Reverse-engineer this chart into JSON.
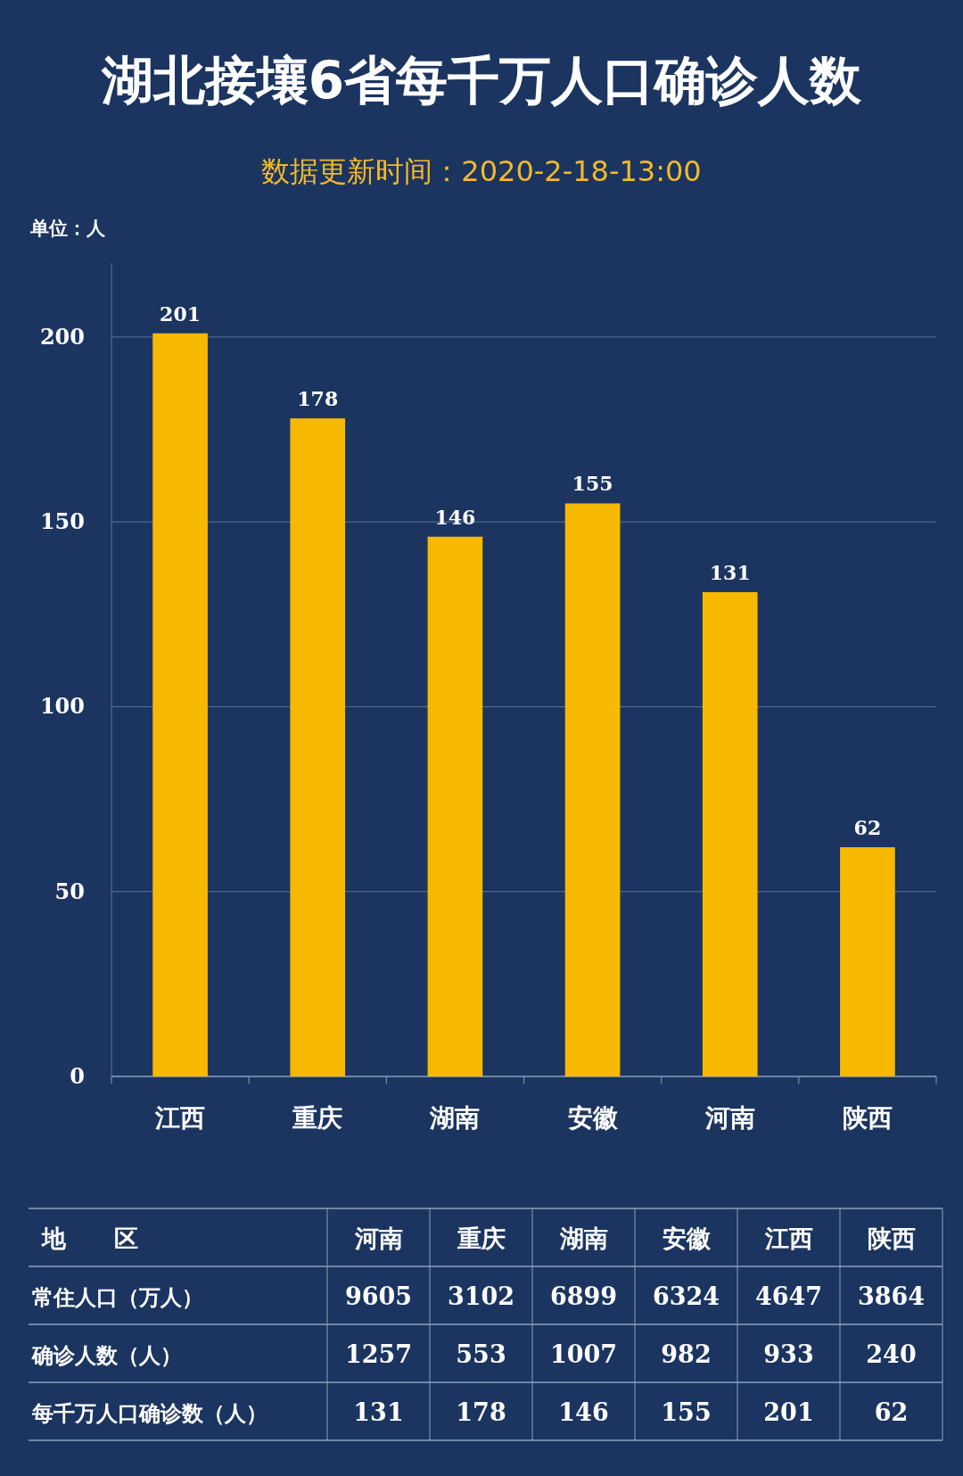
{
  "chart_data": [
    {
      "type": "bar",
      "title": "湖北接壤6省每千万人口确诊人数",
      "subtitle": "数据更新时间：2020-2-18-13:00",
      "ylabel": "单位：人",
      "categories": [
        "江西",
        "重庆",
        "湖南",
        "安徽",
        "河南",
        "陕西"
      ],
      "values": [
        201,
        178,
        146,
        155,
        131,
        62
      ],
      "color": "#f7b900",
      "ylim": [
        0,
        220
      ],
      "yticks": [
        0,
        50,
        100,
        150,
        200
      ],
      "grid": "y",
      "data_labels": true
    },
    {
      "type": "heatmap",
      "ylabel": "地　　区",
      "data_labels": true,
      "categories": [
        "河南",
        "重庆",
        "湖南",
        "安徽",
        "江西",
        "陕西"
      ],
      "y_categories": [
        "常住人口（万人）",
        "确诊人数（人）",
        "每千万人口确诊数（人）"
      ],
      "cells": [
        [
          9605,
          3102,
          6899,
          6324,
          4647,
          3864
        ],
        [
          1257,
          553,
          1007,
          982,
          933,
          240
        ],
        [
          131,
          178,
          146,
          155,
          201,
          62
        ]
      ]
    }
  ]
}
